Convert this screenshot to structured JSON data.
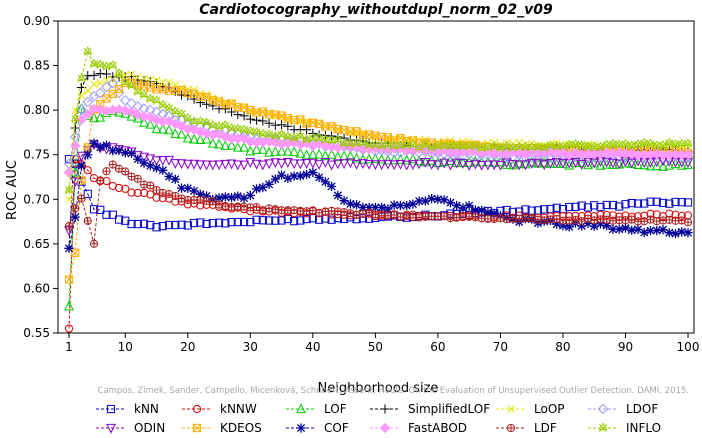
{
  "chart_data": {
    "type": "line",
    "title": "Cardiotocography_withoutdupl_norm_02_v09",
    "xlabel": "Neighborhood size",
    "ylabel": "ROC AUC",
    "xlim": [
      1,
      100
    ],
    "ylim": [
      0.55,
      0.9
    ],
    "x_ticks": [
      1,
      10,
      20,
      30,
      40,
      50,
      60,
      70,
      80,
      90,
      100
    ],
    "y_ticks": [
      0.55,
      0.6,
      0.65,
      0.7,
      0.75,
      0.8,
      0.85,
      0.9
    ],
    "x_tick_labels": [
      "1",
      "10",
      "20",
      "30",
      "40",
      "50",
      "60",
      "70",
      "80",
      "90",
      "100"
    ],
    "y_tick_labels": [
      "0.55",
      "0.60",
      "0.65",
      "0.70",
      "0.75",
      "0.80",
      "0.85",
      "0.90"
    ],
    "watermark": "Campos, Zimek, Sander, Campello, Micenková, Schubert, Assent, Houle. On the Evaluation of Unsupervised Outlier Detection. DAMI, 2015.",
    "grid": false,
    "legend_position": "bottom",
    "series": [
      {
        "name": "kNN",
        "color": "#0000cc",
        "marker": "square",
        "anchors": [
          [
            1,
            0.745
          ],
          [
            2,
            0.74
          ],
          [
            3,
            0.72
          ],
          [
            5,
            0.69
          ],
          [
            10,
            0.675
          ],
          [
            15,
            0.67
          ],
          [
            20,
            0.672
          ],
          [
            40,
            0.678
          ],
          [
            60,
            0.682
          ],
          [
            80,
            0.69
          ],
          [
            100,
            0.698
          ]
        ]
      },
      {
        "name": "kNNW",
        "color": "#dd0000",
        "marker": "circle",
        "anchors": [
          [
            1,
            0.555
          ],
          [
            2,
            0.745
          ],
          [
            3,
            0.74
          ],
          [
            5,
            0.725
          ],
          [
            10,
            0.71
          ],
          [
            20,
            0.695
          ],
          [
            30,
            0.688
          ],
          [
            50,
            0.682
          ],
          [
            70,
            0.68
          ],
          [
            100,
            0.683
          ]
        ]
      },
      {
        "name": "LOF",
        "color": "#00cc00",
        "marker": "triangle-up",
        "anchors": [
          [
            1,
            0.58
          ],
          [
            2,
            0.73
          ],
          [
            3,
            0.8
          ],
          [
            5,
            0.79
          ],
          [
            8,
            0.8
          ],
          [
            10,
            0.795
          ],
          [
            15,
            0.78
          ],
          [
            20,
            0.77
          ],
          [
            30,
            0.755
          ],
          [
            50,
            0.745
          ],
          [
            70,
            0.74
          ],
          [
            100,
            0.738
          ]
        ]
      },
      {
        "name": "SimplifiedLOF",
        "color": "#000000",
        "marker": "plus",
        "anchors": [
          [
            1,
            0.645
          ],
          [
            2,
            0.78
          ],
          [
            3,
            0.825
          ],
          [
            4,
            0.84
          ],
          [
            6,
            0.84
          ],
          [
            10,
            0.838
          ],
          [
            15,
            0.83
          ],
          [
            20,
            0.815
          ],
          [
            30,
            0.79
          ],
          [
            40,
            0.775
          ],
          [
            50,
            0.762
          ],
          [
            60,
            0.757
          ],
          [
            70,
            0.755
          ],
          [
            100,
            0.755
          ]
        ]
      },
      {
        "name": "LoOP",
        "color": "#e6e600",
        "marker": "x",
        "anchors": [
          [
            1,
            0.7
          ],
          [
            2,
            0.8
          ],
          [
            3,
            0.815
          ],
          [
            5,
            0.83
          ],
          [
            10,
            0.84
          ],
          [
            20,
            0.825
          ],
          [
            30,
            0.8
          ],
          [
            40,
            0.785
          ],
          [
            50,
            0.77
          ],
          [
            60,
            0.765
          ],
          [
            70,
            0.762
          ],
          [
            100,
            0.76
          ]
        ]
      },
      {
        "name": "LDOF",
        "color": "#9999ff",
        "marker": "diamond",
        "anchors": [
          [
            1,
            0.74
          ],
          [
            2,
            0.77
          ],
          [
            3,
            0.8
          ],
          [
            5,
            0.815
          ],
          [
            8,
            0.83
          ],
          [
            10,
            0.81
          ],
          [
            20,
            0.785
          ],
          [
            30,
            0.77
          ],
          [
            50,
            0.755
          ],
          [
            70,
            0.748
          ],
          [
            100,
            0.748
          ]
        ]
      },
      {
        "name": "ODIN",
        "color": "#8800cc",
        "marker": "triangle-down",
        "anchors": [
          [
            1,
            0.665
          ],
          [
            2,
            0.72
          ],
          [
            3,
            0.75
          ],
          [
            5,
            0.76
          ],
          [
            10,
            0.755
          ],
          [
            15,
            0.745
          ],
          [
            20,
            0.74
          ],
          [
            30,
            0.74
          ],
          [
            50,
            0.74
          ],
          [
            70,
            0.74
          ],
          [
            100,
            0.742
          ]
        ]
      },
      {
        "name": "KDEOS",
        "color": "#ffaa00",
        "marker": "boxed-x",
        "anchors": [
          [
            1,
            0.61
          ],
          [
            2,
            0.64
          ],
          [
            3,
            0.72
          ],
          [
            5,
            0.8
          ],
          [
            10,
            0.83
          ],
          [
            20,
            0.82
          ],
          [
            30,
            0.8
          ],
          [
            40,
            0.785
          ],
          [
            50,
            0.77
          ],
          [
            60,
            0.762
          ],
          [
            70,
            0.758
          ],
          [
            100,
            0.752
          ]
        ]
      },
      {
        "name": "COF",
        "color": "#000099",
        "marker": "asterisk",
        "anchors": [
          [
            1,
            0.645
          ],
          [
            2,
            0.68
          ],
          [
            3,
            0.74
          ],
          [
            5,
            0.76
          ],
          [
            10,
            0.755
          ],
          [
            15,
            0.735
          ],
          [
            20,
            0.71
          ],
          [
            25,
            0.7
          ],
          [
            30,
            0.705
          ],
          [
            35,
            0.725
          ],
          [
            40,
            0.73
          ],
          [
            45,
            0.7
          ],
          [
            50,
            0.688
          ],
          [
            55,
            0.695
          ],
          [
            60,
            0.7
          ],
          [
            65,
            0.69
          ],
          [
            70,
            0.68
          ],
          [
            80,
            0.672
          ],
          [
            90,
            0.668
          ],
          [
            100,
            0.66
          ]
        ]
      },
      {
        "name": "FastABOD",
        "color": "#ff99ff",
        "marker": "diamond-filled",
        "anchors": [
          [
            1,
            0.73
          ],
          [
            2,
            0.76
          ],
          [
            3,
            0.79
          ],
          [
            5,
            0.8
          ],
          [
            10,
            0.8
          ],
          [
            20,
            0.78
          ],
          [
            30,
            0.765
          ],
          [
            50,
            0.757
          ],
          [
            70,
            0.752
          ],
          [
            100,
            0.75
          ]
        ]
      },
      {
        "name": "LDF",
        "color": "#aa2222",
        "marker": "circle-plus",
        "anchors": [
          [
            1,
            0.67
          ],
          [
            2,
            0.69
          ],
          [
            3,
            0.7
          ],
          [
            5,
            0.65
          ],
          [
            6,
            0.72
          ],
          [
            8,
            0.74
          ],
          [
            10,
            0.73
          ],
          [
            15,
            0.71
          ],
          [
            20,
            0.7
          ],
          [
            30,
            0.69
          ],
          [
            50,
            0.683
          ],
          [
            70,
            0.678
          ],
          [
            100,
            0.675
          ]
        ]
      },
      {
        "name": "INFLO",
        "color": "#99cc00",
        "marker": "star",
        "anchors": [
          [
            1,
            0.71
          ],
          [
            2,
            0.79
          ],
          [
            3,
            0.835
          ],
          [
            4,
            0.865
          ],
          [
            5,
            0.85
          ],
          [
            8,
            0.85
          ],
          [
            10,
            0.83
          ],
          [
            20,
            0.79
          ],
          [
            30,
            0.775
          ],
          [
            50,
            0.76
          ],
          [
            70,
            0.758
          ],
          [
            100,
            0.762
          ]
        ]
      }
    ]
  }
}
